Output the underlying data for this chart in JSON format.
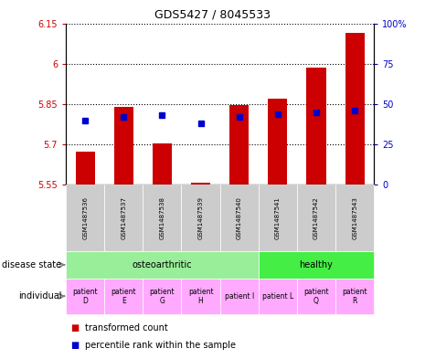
{
  "title": "GDS5427 / 8045533",
  "samples": [
    "GSM1487536",
    "GSM1487537",
    "GSM1487538",
    "GSM1487539",
    "GSM1487540",
    "GSM1487541",
    "GSM1487542",
    "GSM1487543"
  ],
  "transformed_count": [
    5.675,
    5.84,
    5.705,
    5.558,
    5.845,
    5.87,
    5.985,
    6.115
  ],
  "percentile_rank": [
    40,
    42,
    43,
    38,
    42,
    44,
    45,
    46
  ],
  "ylim_left": [
    5.55,
    6.15
  ],
  "ylim_right": [
    0,
    100
  ],
  "yticks_left": [
    5.55,
    5.7,
    5.85,
    6.0,
    6.15
  ],
  "yticks_right": [
    0,
    25,
    50,
    75,
    100
  ],
  "ytick_labels_left": [
    "5.55",
    "5.7",
    "5.85",
    "6",
    "6.15"
  ],
  "ytick_labels_right": [
    "0",
    "25",
    "50",
    "75",
    "100%"
  ],
  "bar_color": "#cc0000",
  "dot_color": "#0000cc",
  "bar_bottom": 5.55,
  "disease_state_groups": [
    {
      "label": "osteoarthritic",
      "start": 0,
      "end": 5,
      "color": "#99ee99"
    },
    {
      "label": "healthy",
      "start": 5,
      "end": 8,
      "color": "#44ee44"
    }
  ],
  "ind_labels": [
    "patient\nD",
    "patient\nE",
    "patient\nG",
    "patient\nH",
    "patient I",
    "patient L",
    "patient\nQ",
    "patient\nR"
  ],
  "gsm_bg_color": "#cccccc",
  "ind_color": "#ffaaff",
  "legend_items": [
    {
      "label": "transformed count",
      "color": "#cc0000"
    },
    {
      "label": "percentile rank within the sample",
      "color": "#0000cc"
    }
  ]
}
